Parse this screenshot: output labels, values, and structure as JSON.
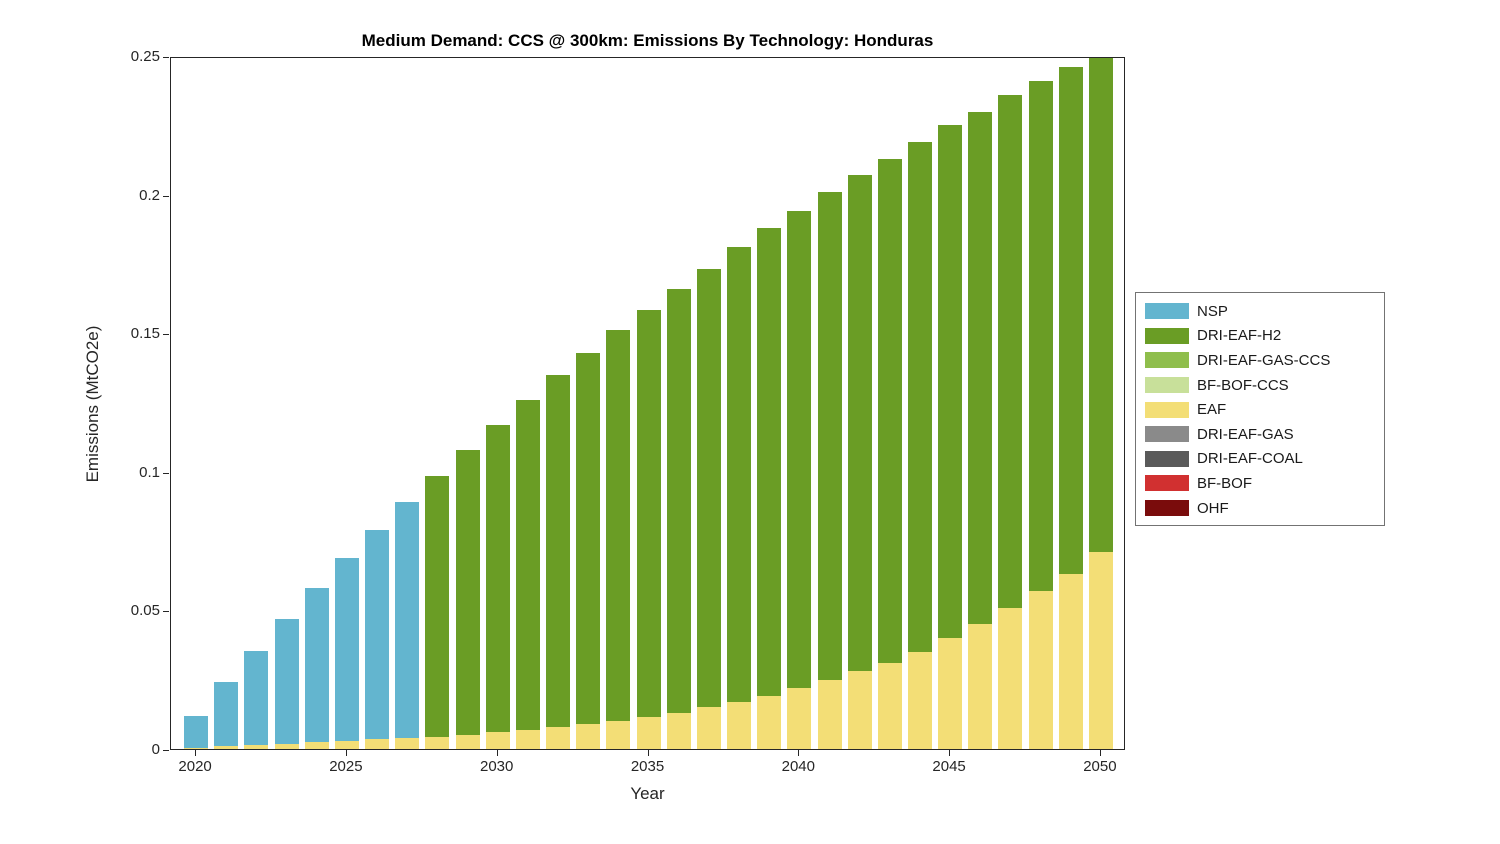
{
  "title": "Medium Demand: CCS @ 300km: Emissions By Technology: Honduras",
  "chart_data": {
    "type": "bar",
    "stacked": true,
    "title": "Medium Demand: CCS @ 300km: Emissions By Technology: Honduras",
    "xlabel": "Year",
    "ylabel": "Emissions (MtCO2e)",
    "ylim": [
      0,
      0.25
    ],
    "xticks": [
      2020,
      2025,
      2030,
      2035,
      2040,
      2045,
      2050
    ],
    "yticks": [
      0,
      0.05,
      0.1,
      0.15,
      0.2,
      0.25
    ],
    "ytick_labels": [
      "0",
      "0.05",
      "0.1",
      "0.15",
      "0.2",
      "0.25"
    ],
    "grid": false,
    "legend_position": "right-outside",
    "x": [
      2020,
      2021,
      2022,
      2023,
      2024,
      2025,
      2026,
      2027,
      2028,
      2029,
      2030,
      2031,
      2032,
      2033,
      2034,
      2035,
      2036,
      2037,
      2038,
      2039,
      2040,
      2041,
      2042,
      2043,
      2044,
      2045,
      2046,
      2047,
      2048,
      2049,
      2050
    ],
    "stack_order": [
      "EAF",
      "NSP",
      "DRI-EAF-H2",
      "DRI-EAF-GAS-CCS",
      "BF-BOF-CCS",
      "DRI-EAF-GAS",
      "DRI-EAF-COAL",
      "BF-BOF",
      "OHF"
    ],
    "series": [
      {
        "name": "NSP",
        "color": "#63B5CF",
        "values": [
          0.0115,
          0.023,
          0.034,
          0.045,
          0.0555,
          0.066,
          0.0755,
          0.085,
          0,
          0,
          0,
          0,
          0,
          0,
          0,
          0,
          0,
          0,
          0,
          0,
          0,
          0,
          0,
          0,
          0,
          0,
          0,
          0,
          0,
          0,
          0
        ]
      },
      {
        "name": "DRI-EAF-H2",
        "color": "#6A9D25",
        "values": [
          0,
          0,
          0,
          0,
          0,
          0,
          0,
          0,
          0.094,
          0.103,
          0.111,
          0.119,
          0.127,
          0.134,
          0.141,
          0.147,
          0.153,
          0.158,
          0.164,
          0.169,
          0.172,
          0.176,
          0.179,
          0.182,
          0.184,
          0.185,
          0.185,
          0.185,
          0.184,
          0.183,
          0.18
        ]
      },
      {
        "name": "DRI-EAF-GAS-CCS",
        "color": "#8FBE4C",
        "values": [
          0,
          0,
          0,
          0,
          0,
          0,
          0,
          0,
          0,
          0,
          0,
          0,
          0,
          0,
          0,
          0,
          0,
          0,
          0,
          0,
          0,
          0,
          0,
          0,
          0,
          0,
          0,
          0,
          0,
          0,
          0
        ]
      },
      {
        "name": "BF-BOF-CCS",
        "color": "#C8E09A",
        "values": [
          0,
          0,
          0,
          0,
          0,
          0,
          0,
          0,
          0,
          0,
          0,
          0,
          0,
          0,
          0,
          0,
          0,
          0,
          0,
          0,
          0,
          0,
          0,
          0,
          0,
          0,
          0,
          0,
          0,
          0,
          0
        ]
      },
      {
        "name": "EAF",
        "color": "#F3DE76",
        "values": [
          0.0005,
          0.001,
          0.0015,
          0.002,
          0.0025,
          0.003,
          0.0035,
          0.004,
          0.0045,
          0.005,
          0.006,
          0.007,
          0.008,
          0.009,
          0.01,
          0.0115,
          0.013,
          0.015,
          0.017,
          0.019,
          0.022,
          0.025,
          0.028,
          0.031,
          0.035,
          0.04,
          0.045,
          0.051,
          0.057,
          0.063,
          0.071
        ]
      },
      {
        "name": "DRI-EAF-GAS",
        "color": "#8A8A8A",
        "values": [
          0,
          0,
          0,
          0,
          0,
          0,
          0,
          0,
          0,
          0,
          0,
          0,
          0,
          0,
          0,
          0,
          0,
          0,
          0,
          0,
          0,
          0,
          0,
          0,
          0,
          0,
          0,
          0,
          0,
          0,
          0
        ]
      },
      {
        "name": "DRI-EAF-COAL",
        "color": "#5A5A5A",
        "values": [
          0,
          0,
          0,
          0,
          0,
          0,
          0,
          0,
          0,
          0,
          0,
          0,
          0,
          0,
          0,
          0,
          0,
          0,
          0,
          0,
          0,
          0,
          0,
          0,
          0,
          0,
          0,
          0,
          0,
          0,
          0
        ]
      },
      {
        "name": "BF-BOF",
        "color": "#D13030",
        "values": [
          0,
          0,
          0,
          0,
          0,
          0,
          0,
          0,
          0,
          0,
          0,
          0,
          0,
          0,
          0,
          0,
          0,
          0,
          0,
          0,
          0,
          0,
          0,
          0,
          0,
          0,
          0,
          0,
          0,
          0,
          0
        ]
      },
      {
        "name": "OHF",
        "color": "#7A0C0C",
        "values": [
          0,
          0,
          0,
          0,
          0,
          0,
          0,
          0,
          0,
          0,
          0,
          0,
          0,
          0,
          0,
          0,
          0,
          0,
          0,
          0,
          0,
          0,
          0,
          0,
          0,
          0,
          0,
          0,
          0,
          0,
          0
        ]
      }
    ]
  }
}
